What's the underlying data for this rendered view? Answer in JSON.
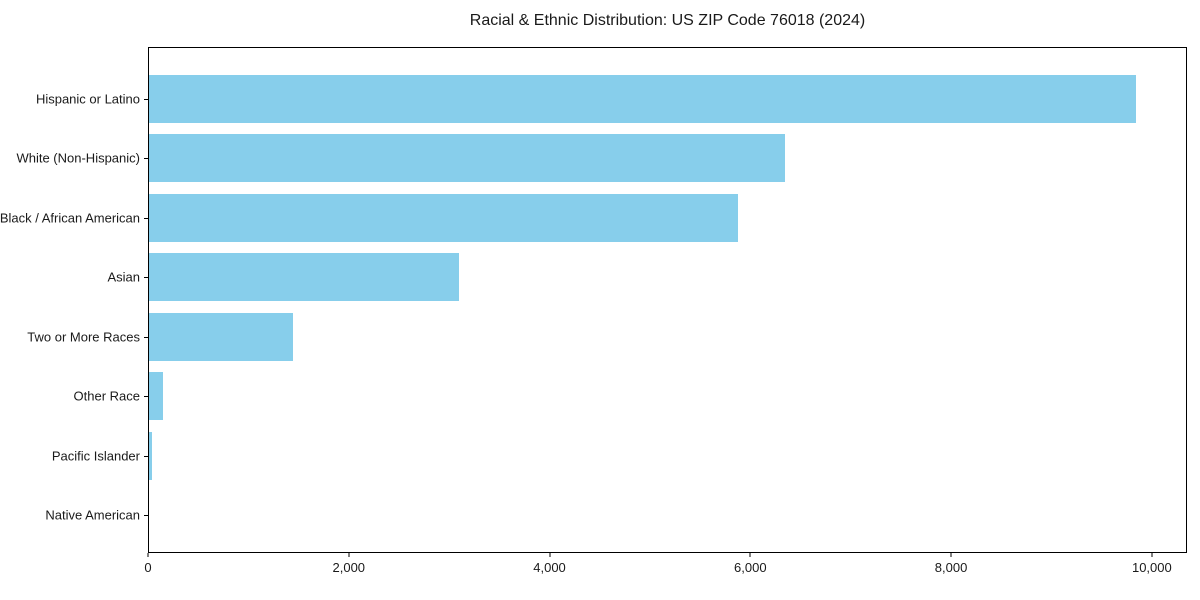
{
  "title": "Racial & Ethnic Distribution: US ZIP Code 76018 (2024)",
  "colors": {
    "bar": "#87CEEB",
    "axis": "#000000",
    "text": "#1a1a1a",
    "background": "#FFFFFF"
  },
  "chart_data": {
    "type": "bar",
    "orientation": "horizontal",
    "title": "Racial & Ethnic Distribution: US ZIP Code 76018 (2024)",
    "categories": [
      "Hispanic or Latino",
      "White (Non-Hispanic)",
      "Black / African American",
      "Asian",
      "Two or More Races",
      "Other Race",
      "Pacific Islander",
      "Native American"
    ],
    "values": [
      9850,
      6350,
      5880,
      3090,
      1440,
      140,
      25,
      0
    ],
    "xlabel": "",
    "ylabel": "",
    "xlim": [
      0,
      10350
    ],
    "xticks": {
      "values": [
        0,
        2000,
        4000,
        6000,
        8000,
        10000
      ],
      "labels": [
        "0",
        "2,000",
        "4,000",
        "6,000",
        "8,000",
        "10,000"
      ]
    },
    "grid": false,
    "legend": null,
    "bar_color": "#87CEEB"
  }
}
